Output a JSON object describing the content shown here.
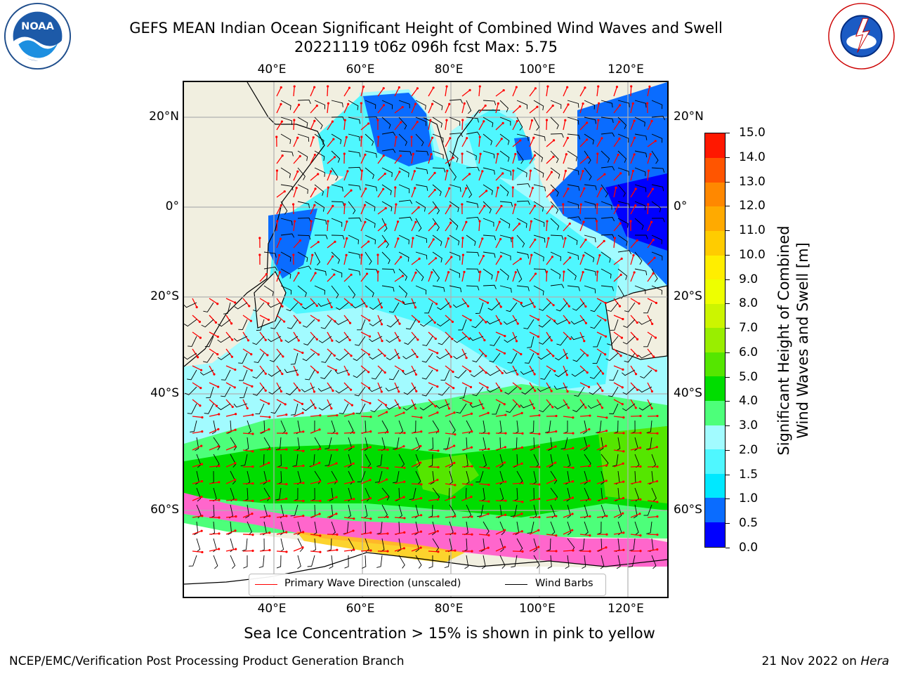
{
  "header": {
    "title_line1": "GEFS MEAN Indian Ocean Significant Height of Combined Wind Waves and Swell",
    "title_line2": "20221119 t06z 096h fcst   Max: 5.75"
  },
  "map": {
    "lon_ticks": [
      "40°E",
      "60°E",
      "80°E",
      "100°E",
      "120°E"
    ],
    "lat_ticks_left": [
      "20°N",
      "0°",
      "20°S",
      "40°S",
      "60°S"
    ],
    "lat_ticks_right": [
      "20°N",
      "0°",
      "20°S",
      "40°S",
      "60°S"
    ],
    "extent": {
      "lon_min": 20,
      "lon_max": 130,
      "lat_min": -75,
      "lat_max": 28
    },
    "land_color": "#f1efe0"
  },
  "legend": {
    "wave_label": "Primary Wave Direction (unscaled)",
    "wind_label": "Wind Barbs",
    "wave_color": "#ff0000",
    "wind_color": "#000000"
  },
  "colorbar": {
    "title_line1": "Significant Height of Combined",
    "title_line2": "Wind Waves and Swell [m]",
    "levels": [
      "0.0",
      "0.5",
      "1.0",
      "1.5",
      "2.0",
      "3.0",
      "4.0",
      "5.0",
      "6.0",
      "7.0",
      "8.0",
      "9.0",
      "10.0",
      "11.0",
      "12.0",
      "13.0",
      "14.0",
      "15.0"
    ],
    "colors": [
      "#0000ff",
      "#0a6cff",
      "#00e8ff",
      "#4ff7ff",
      "#a2fbff",
      "#4dff7a",
      "#00dd00",
      "#55e600",
      "#99ee00",
      "#ccf500",
      "#eeff00",
      "#ffee00",
      "#ffcc00",
      "#ffaa00",
      "#ff8800",
      "#ff5500",
      "#ff1800"
    ]
  },
  "footer": {
    "sea_ice_note": "Sea Ice Concentration > 15% is shown in pink to yellow",
    "producer": "NCEP/EMC/Verification Post Processing Product Generation Branch",
    "date": "21 Nov 2022 on",
    "machine": "Hera"
  },
  "logos": {
    "left": "NOAA",
    "right": "NATIONAL WEATHER SERVICE"
  }
}
